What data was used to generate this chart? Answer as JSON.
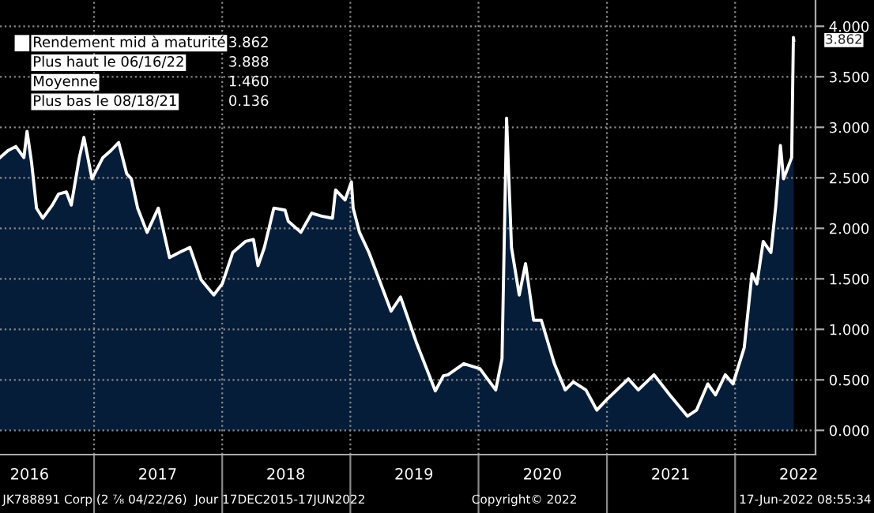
{
  "chart_data": {
    "type": "area",
    "x": [
      "2016-04-08",
      "2016-05-01",
      "2016-05-23",
      "2016-06-15",
      "2016-06-24",
      "2016-07-07",
      "2016-07-21",
      "2016-08-08",
      "2016-09-04",
      "2016-09-22",
      "2016-10-14",
      "2016-10-28",
      "2016-11-20",
      "2016-12-03",
      "2016-12-26",
      "2017-01-26",
      "2017-02-18",
      "2017-03-12",
      "2017-04-04",
      "2017-04-17",
      "2017-05-05",
      "2017-06-01",
      "2017-07-03",
      "2017-08-04",
      "2017-08-31",
      "2017-10-01",
      "2017-11-02",
      "2017-12-08",
      "2018-01-01",
      "2018-01-31",
      "2018-03-08",
      "2018-03-31",
      "2018-04-13",
      "2018-05-01",
      "2018-05-28",
      "2018-06-29",
      "2018-07-08",
      "2018-08-13",
      "2018-09-13",
      "2018-10-11",
      "2018-11-11",
      "2018-11-20",
      "2018-12-17",
      "2019-01-04",
      "2019-01-09",
      "2019-01-27",
      "2019-02-23",
      "2019-04-27",
      "2019-05-24",
      "2019-07-08",
      "2019-08-31",
      "2019-09-23",
      "2019-10-06",
      "2019-11-20",
      "2020-01-05",
      "2020-02-19",
      "2020-03-08",
      "2020-03-21",
      "2020-04-04",
      "2020-04-26",
      "2020-05-14",
      "2020-06-06",
      "2020-06-28",
      "2020-08-04",
      "2020-09-04",
      "2020-09-27",
      "2020-11-02",
      "2020-12-03",
      "2020-12-30",
      "2021-03-03",
      "2021-03-31",
      "2021-05-15",
      "2021-06-29",
      "2021-08-18",
      "2021-09-13",
      "2021-10-15",
      "2021-11-06",
      "2021-12-04",
      "2021-12-26",
      "2022-01-27",
      "2022-02-18",
      "2022-03-04",
      "2022-03-22",
      "2022-04-13",
      "2022-04-27",
      "2022-05-10",
      "2022-05-19",
      "2022-06-11",
      "2022-06-16",
      "2022-06-17"
    ],
    "series": [
      {
        "name": "Rendement mid à maturité",
        "color": "#061d3a",
        "values": [
          2.7,
          2.77,
          2.81,
          2.7,
          2.96,
          2.65,
          2.2,
          2.1,
          2.23,
          2.34,
          2.36,
          2.23,
          2.7,
          2.9,
          2.49,
          2.7,
          2.77,
          2.85,
          2.54,
          2.49,
          2.2,
          1.96,
          2.2,
          1.71,
          1.76,
          1.81,
          1.49,
          1.34,
          1.45,
          1.76,
          1.87,
          1.89,
          1.63,
          1.81,
          2.2,
          2.18,
          2.07,
          1.96,
          2.15,
          2.12,
          2.1,
          2.38,
          2.28,
          2.46,
          2.2,
          1.96,
          1.76,
          1.18,
          1.32,
          0.87,
          0.39,
          0.54,
          0.55,
          0.66,
          0.61,
          0.4,
          0.71,
          3.09,
          1.81,
          1.34,
          1.65,
          1.09,
          1.09,
          0.66,
          0.4,
          0.48,
          0.4,
          0.2,
          0.3,
          0.51,
          0.4,
          0.55,
          0.35,
          0.14,
          0.2,
          0.46,
          0.35,
          0.55,
          0.46,
          0.82,
          1.55,
          1.45,
          1.87,
          1.76,
          2.23,
          2.82,
          2.49,
          2.7,
          3.89,
          3.86
        ]
      }
    ],
    "xlim": [
      "2016-04-08",
      "2022-08-18"
    ],
    "xticks": [
      {
        "value": "2016-07-01",
        "label": "2016"
      },
      {
        "value": "2017-01-01",
        "label": null
      },
      {
        "value": "2017-07-01",
        "label": "2017"
      },
      {
        "value": "2018-01-01",
        "label": null
      },
      {
        "value": "2018-07-01",
        "label": "2018"
      },
      {
        "value": "2019-01-01",
        "label": null
      },
      {
        "value": "2019-07-01",
        "label": "2019"
      },
      {
        "value": "2020-01-01",
        "label": null
      },
      {
        "value": "2020-07-01",
        "label": "2020"
      },
      {
        "value": "2021-01-01",
        "label": null
      },
      {
        "value": "2021-07-01",
        "label": "2021"
      },
      {
        "value": "2022-01-01",
        "label": null
      },
      {
        "value": "2022-07-01",
        "label": "2022"
      }
    ],
    "ylim": [
      -0.24,
      4.26
    ],
    "yticks": [
      {
        "value": 0,
        "label": "0.000"
      },
      {
        "value": 0.5,
        "label": "0.500"
      },
      {
        "value": 1,
        "label": "1.000"
      },
      {
        "value": 1.5,
        "label": "1.500"
      },
      {
        "value": 2,
        "label": "2.000"
      },
      {
        "value": 2.5,
        "label": "2.500"
      },
      {
        "value": 3,
        "label": "3.000"
      },
      {
        "value": 3.5,
        "label": "3.500"
      },
      {
        "value": 4,
        "label": "4.000"
      }
    ],
    "grid": true,
    "legend": "top left",
    "annotations": [
      {
        "text": "3.862",
        "x": "2022-06-17",
        "y": 3.862
      },
      "3.862",
      "Plus haut le 06/16/22",
      "3.888",
      "Moyenne",
      "1.460",
      "Plus bas le 08/18/21",
      "0.136",
      "JK788891 Corp (2 ⅞ 04/22/26)  Jour 17DEC2015-17JUN2022",
      "Copyright© 2022",
      "17-Jun-2022 08:55:34"
    ]
  }
}
